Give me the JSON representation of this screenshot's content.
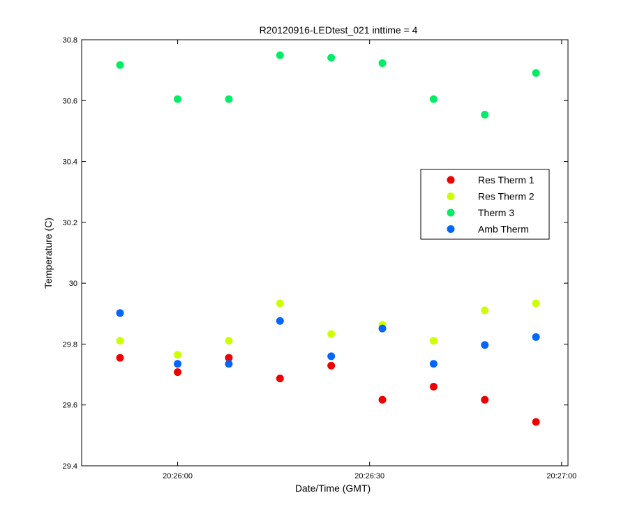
{
  "chart_data": {
    "type": "scatter",
    "title": "R20120916-LEDtest_021 inttime = 4",
    "xlabel": "Date/Time (GMT)",
    "ylabel": "Temperature (C)",
    "x_unit": "time (GMT, HH:MM:SS on 2012-09-16)",
    "xlim": [
      "20:25:45",
      "20:27:01"
    ],
    "ylim": [
      29.4,
      30.8
    ],
    "x_ticks": [
      "20:26:00",
      "20:26:30",
      "20:27:00"
    ],
    "y_ticks": [
      "29.4",
      "29.6",
      "29.8",
      "30",
      "30.2",
      "30.4",
      "30.6",
      "30.8"
    ],
    "grid": false,
    "legend_position": "center-right",
    "x": [
      "20:25:51",
      "20:26:00",
      "20:26:08",
      "20:26:16",
      "20:26:24",
      "20:26:32",
      "20:26:40",
      "20:26:48",
      "20:26:56"
    ],
    "series": [
      {
        "name": "Res Therm 1",
        "color": "#ee0000",
        "values": [
          29.755,
          29.708,
          29.755,
          29.687,
          29.729,
          29.617,
          29.66,
          29.617,
          29.544
        ]
      },
      {
        "name": "Res Therm 2",
        "color": "#ccff00",
        "values": [
          29.811,
          29.765,
          29.811,
          29.934,
          29.833,
          29.863,
          29.811,
          29.911,
          29.934
        ]
      },
      {
        "name": "Therm 3",
        "color": "#00ee66",
        "values": [
          30.717,
          30.605,
          30.605,
          30.749,
          30.741,
          30.723,
          30.605,
          30.554,
          30.691
        ]
      },
      {
        "name": "Amb Therm",
        "color": "#0066ff",
        "values": [
          29.902,
          29.735,
          29.735,
          29.876,
          29.76,
          29.851,
          29.735,
          29.797,
          29.823
        ]
      }
    ]
  }
}
